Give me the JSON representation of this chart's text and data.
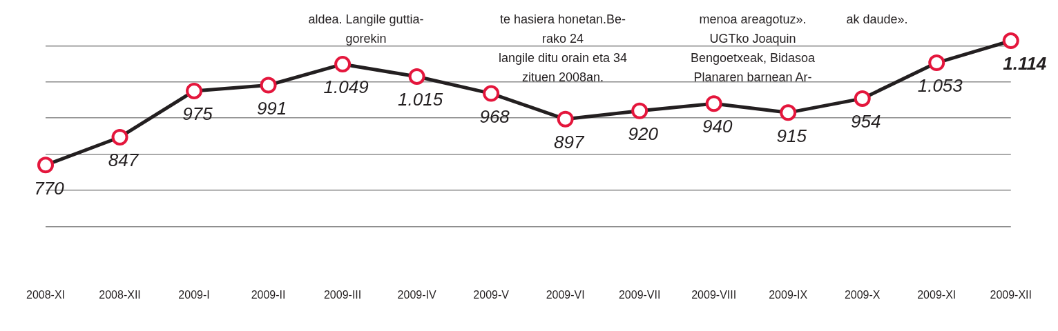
{
  "chart_data": {
    "type": "line",
    "categories": [
      "2008-XI",
      "2008-XII",
      "2009-I",
      "2009-II",
      "2009-III",
      "2009-IV",
      "2009-V",
      "2009-VI",
      "2009-VII",
      "2009-VIII",
      "2009-IX",
      "2009-X",
      "2009-XI",
      "2009-XII"
    ],
    "series": [
      {
        "color": "#231f20",
        "values": [
          770,
          847,
          975,
          991,
          1049,
          1015,
          968,
          897,
          920,
          940,
          915,
          954,
          1053,
          1114
        ],
        "value_labels": [
          "770",
          "847",
          "975",
          "991",
          "1.049",
          "1.015",
          "968",
          "897",
          "920",
          "940",
          "915",
          "954",
          "1.053",
          "1.114"
        ]
      }
    ],
    "marker": "circle",
    "line_style": "solid",
    "yticks": [
      {
        "value": 600,
        "label": null
      },
      {
        "value": 700,
        "label": null
      },
      {
        "value": 800,
        "label": null
      },
      {
        "value": 900,
        "label": null
      },
      {
        "value": 1000,
        "label": null
      },
      {
        "value": 1100,
        "label": null
      }
    ],
    "grid": "y",
    "tick_labels": "x",
    "legend": false,
    "annotations": [
      "aldea.  Langile  guttia-\ngorekin",
      "te hasiera honetan.Be-\nrako 24\nlangile ditu orain eta 34\nzituen 2008an.",
      "menoa areagotuz».\nUGTko Joaquin\nBengoetxeak, Bidasoa\nPlanaren barnean Ar-",
      "ak daude»."
    ]
  }
}
